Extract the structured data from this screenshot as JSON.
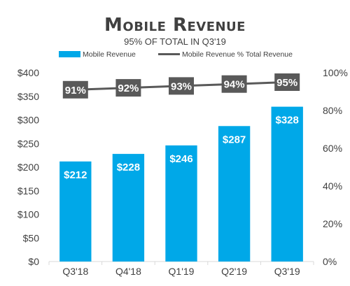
{
  "colors": {
    "bar": "#00a8e8",
    "line": "#595959",
    "pct_box": "#595959",
    "title": "#404040",
    "subtitle": "#404040",
    "axis_text": "#404040",
    "axis_line": "#d9d9d9"
  },
  "chart_data": {
    "type": "bar",
    "title": "Mobile Revenue",
    "subtitle": "95% OF TOTAL IN Q3'19",
    "categories": [
      "Q3'18",
      "Q4'18",
      "Q1'19",
      "Q2'19",
      "Q3'19"
    ],
    "series": [
      {
        "name": "Mobile Revenue",
        "type": "bar",
        "axis": "left",
        "values": [
          212,
          228,
          246,
          287,
          328
        ],
        "labels": [
          "$212",
          "$228",
          "$246",
          "$287",
          "$328"
        ]
      },
      {
        "name": "Mobile Revenue % Total Revenue",
        "type": "line",
        "axis": "right",
        "values": [
          91,
          92,
          93,
          94,
          95
        ],
        "labels": [
          "91%",
          "92%",
          "93%",
          "94%",
          "95%"
        ]
      }
    ],
    "y_left": {
      "range": [
        0,
        400
      ],
      "ticks": [
        0,
        50,
        100,
        150,
        200,
        250,
        300,
        350,
        400
      ],
      "tick_labels": [
        "$0",
        "$50",
        "$100",
        "$150",
        "$200",
        "$250",
        "$300",
        "$350",
        "$400"
      ]
    },
    "y_right": {
      "range": [
        0,
        100
      ],
      "ticks": [
        0,
        20,
        40,
        60,
        80,
        100
      ],
      "tick_labels": [
        "0%",
        "20%",
        "40%",
        "60%",
        "80%",
        "100%"
      ]
    },
    "grid": false,
    "legend_position": "top"
  }
}
